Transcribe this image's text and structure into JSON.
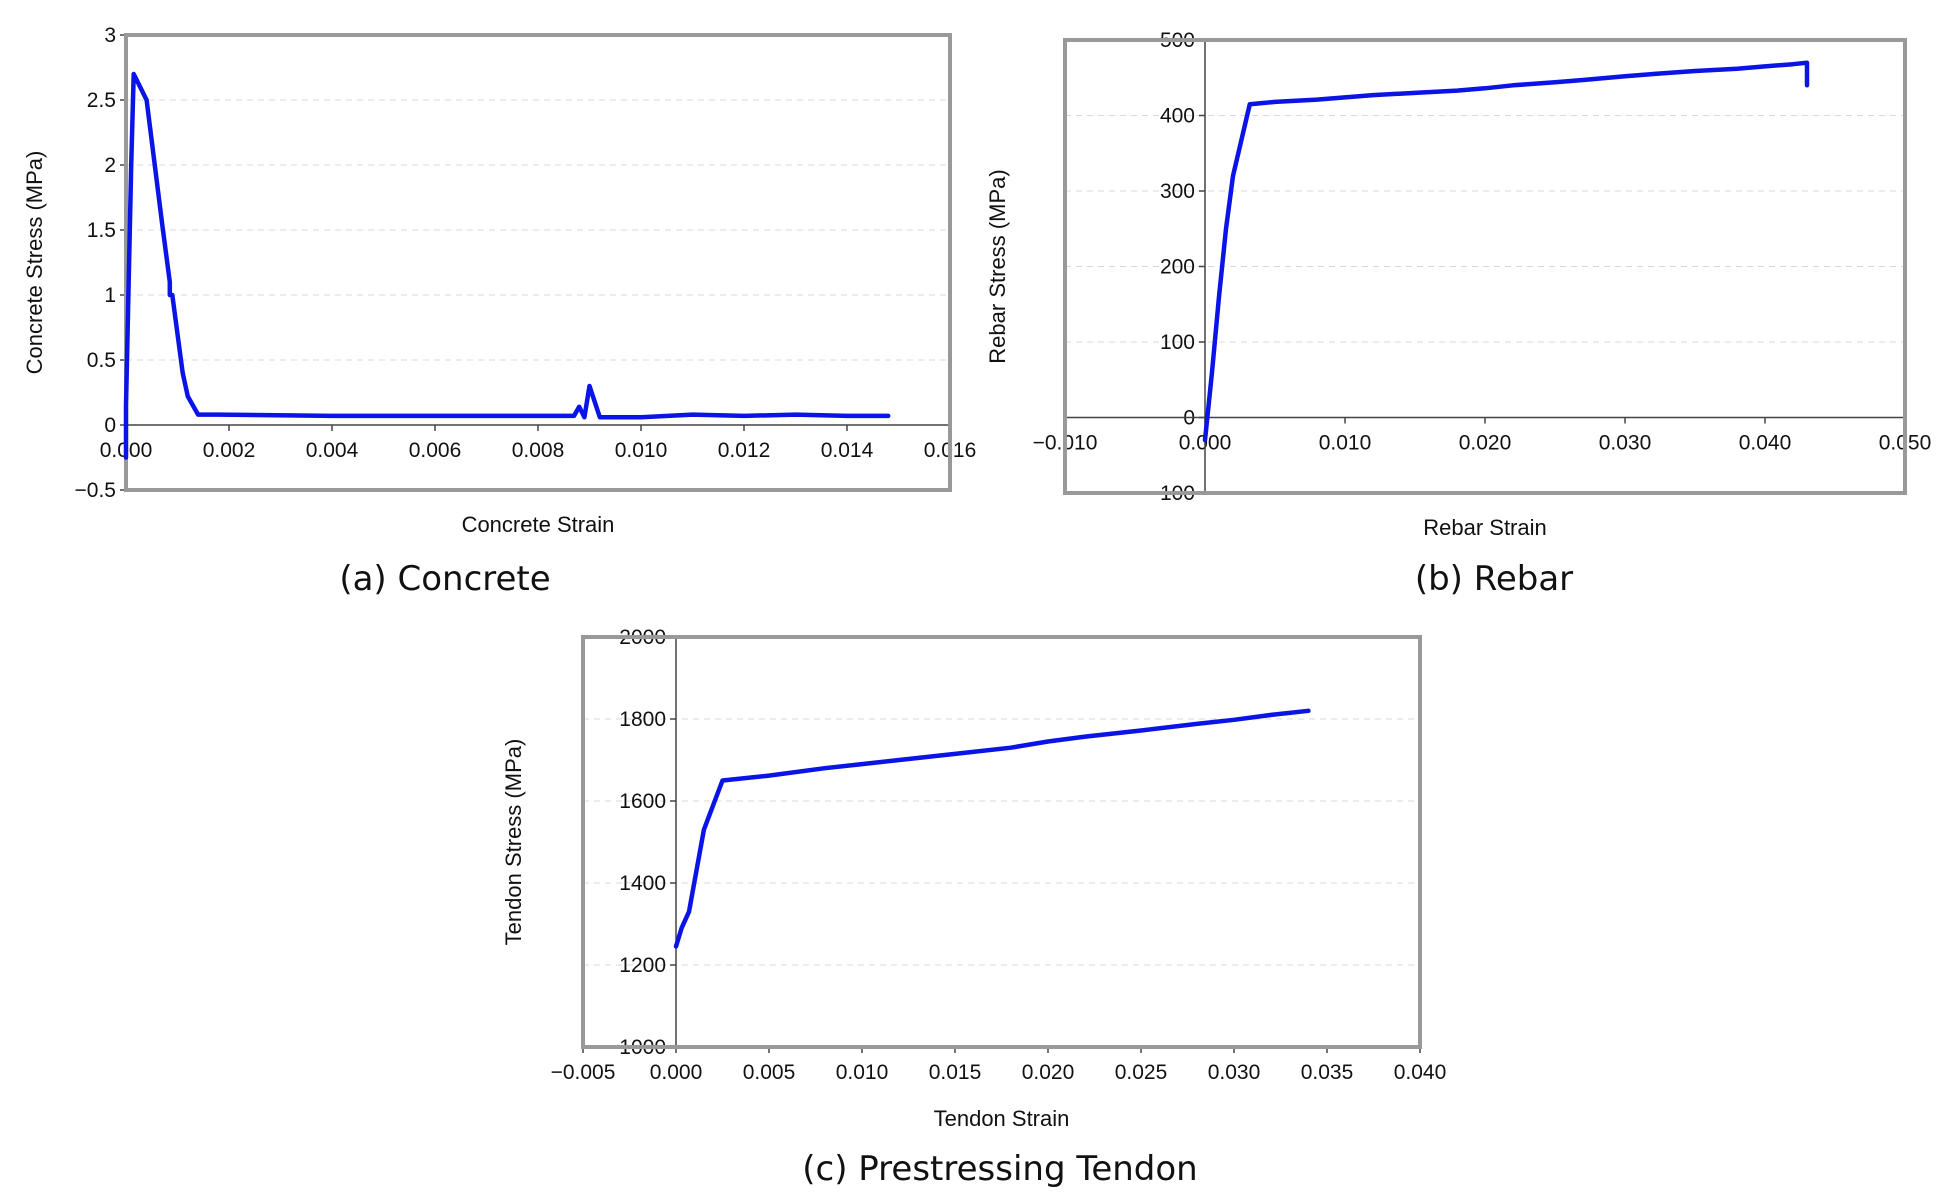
{
  "colors": {
    "series": "#0a14e6",
    "frame": "#999999"
  },
  "chart_data": [
    {
      "type": "line",
      "caption": "(a) Concrete",
      "xlabel": "Concrete Strain",
      "ylabel": "Concrete Stress (MPa)",
      "xlim": [
        0,
        0.016
      ],
      "ylim": [
        -0.5,
        3
      ],
      "xticks": [
        "0.000",
        "0.002",
        "0.004",
        "0.006",
        "0.008",
        "0.010",
        "0.012",
        "0.014",
        "0.016"
      ],
      "yticks": [
        "-0.5",
        "0",
        "0.5",
        "1",
        "1.5",
        "2",
        "2.5",
        "3"
      ],
      "grid": true,
      "series": [
        {
          "x": [
            0,
            0,
            0.0001,
            0.00015,
            0.0004,
            0.0007,
            0.00085,
            0.00085,
            0.0009,
            0.0011,
            0.0012,
            0.0014,
            0.0018,
            0.004,
            0.006,
            0.0087,
            0.0088,
            0.0089,
            0.009,
            0.0092,
            0.0095,
            0.01,
            0.011,
            0.012,
            0.013,
            0.014,
            0.0148
          ],
          "y": [
            -0.25,
            0.15,
            2.0,
            2.7,
            2.5,
            1.55,
            1.1,
            1.0,
            1.0,
            0.4,
            0.22,
            0.08,
            0.08,
            0.07,
            0.07,
            0.07,
            0.14,
            0.06,
            0.3,
            0.06,
            0.06,
            0.06,
            0.08,
            0.07,
            0.08,
            0.07,
            0.07
          ]
        }
      ]
    },
    {
      "type": "line",
      "caption": "(b) Rebar",
      "xlabel": "Rebar Strain",
      "ylabel": "Rebar Stress (MPa)",
      "xlim": [
        -0.01,
        0.05
      ],
      "ylim": [
        -100,
        500
      ],
      "xticks": [
        "-0.010",
        "0.000",
        "0.010",
        "0.020",
        "0.030",
        "0.040",
        "0.050"
      ],
      "yticks": [
        "-100",
        "0",
        "100",
        "200",
        "300",
        "400",
        "500"
      ],
      "grid": true,
      "series": [
        {
          "x": [
            0,
            0.0005,
            0.001,
            0.0015,
            0.002,
            0.0032,
            0.005,
            0.008,
            0.01,
            0.012,
            0.015,
            0.018,
            0.02,
            0.022,
            0.025,
            0.027,
            0.03,
            0.032,
            0.035,
            0.038,
            0.04,
            0.042,
            0.043,
            0.043
          ],
          "y": [
            -30,
            60,
            160,
            250,
            320,
            415,
            418,
            421,
            424,
            427,
            430,
            433,
            436,
            440,
            444,
            447,
            452,
            455,
            459,
            462,
            465,
            468,
            470,
            440
          ]
        }
      ]
    },
    {
      "type": "line",
      "caption": "(c) Prestressing Tendon",
      "xlabel": "Tendon Strain",
      "ylabel": "Tendon Stress (MPa)",
      "xlim": [
        -0.005,
        0.04
      ],
      "ylim": [
        1000,
        2000
      ],
      "xticks": [
        "-0.005",
        "0.000",
        "0.005",
        "0.010",
        "0.015",
        "0.020",
        "0.025",
        "0.030",
        "0.035",
        "0.040"
      ],
      "yticks": [
        "1000",
        "1200",
        "1400",
        "1600",
        "1800",
        "2000"
      ],
      "grid": true,
      "series": [
        {
          "x": [
            0,
            0.0003,
            0.0007,
            0.0015,
            0.0025,
            0.005,
            0.008,
            0.01,
            0.012,
            0.015,
            0.018,
            0.02,
            0.022,
            0.025,
            0.028,
            0.03,
            0.032,
            0.034
          ],
          "y": [
            1245,
            1290,
            1330,
            1530,
            1650,
            1662,
            1680,
            1690,
            1700,
            1715,
            1730,
            1745,
            1757,
            1772,
            1788,
            1798,
            1810,
            1820
          ]
        }
      ]
    }
  ]
}
